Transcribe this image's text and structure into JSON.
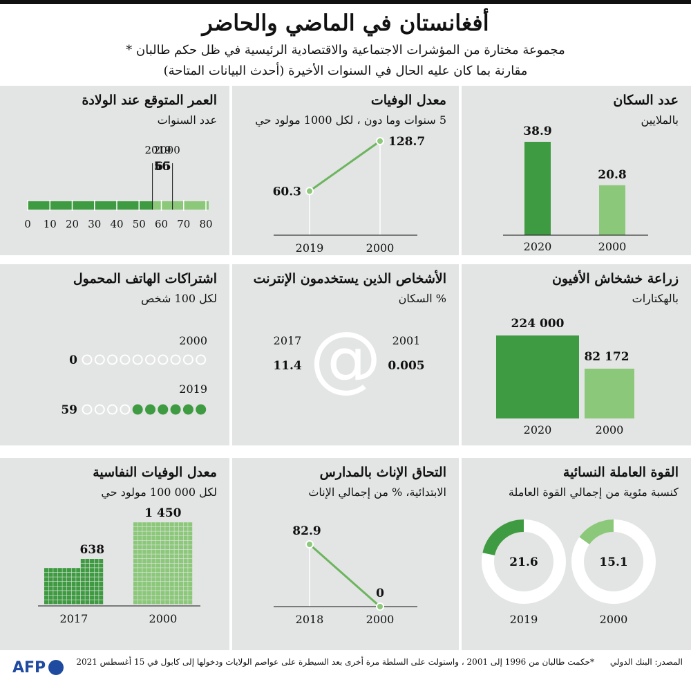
{
  "header": {
    "title": "أفغانستان في الماضي والحاضر",
    "subtitle1": "مجموعة مختارة من المؤشرات الاجتماعية والاقتصادية الرئيسية في ظل حكم طالبان *",
    "subtitle2": "مقارنة بما كان عليه الحال في السنوات الأخيرة (أحدث البيانات المتاحة)"
  },
  "colors": {
    "dark": "#3f9b41",
    "light": "#8cc87a",
    "panel": "#e3e4e4",
    "line": "#6cb55e"
  },
  "chart_data": [
    {
      "id": "population",
      "type": "bar",
      "title": "عدد السكان",
      "subtitle": "بالملايين",
      "categories": [
        "2020",
        "2000"
      ],
      "values": [
        38.9,
        20.8
      ],
      "value_labels": [
        "38.9",
        "20.8"
      ]
    },
    {
      "id": "mortality",
      "type": "line",
      "title": "معدل الوفيات",
      "subtitle": "5 سنوات وما دون ، لكل 1000 مولود حي",
      "categories": [
        "2019",
        "2000"
      ],
      "values": [
        60.3,
        128.7
      ],
      "value_labels": [
        "60.3",
        "128.7"
      ]
    },
    {
      "id": "life_expectancy",
      "type": "bar",
      "title": "العمر المتوقع عند الولادة",
      "subtitle": "عدد السنوات",
      "years": [
        "2019",
        "2000"
      ],
      "values": [
        65,
        56
      ],
      "value_labels": [
        "65",
        "56"
      ],
      "ticks": [
        "0",
        "10",
        "20",
        "30",
        "40",
        "50",
        "60",
        "70",
        "80"
      ],
      "xlim": [
        0,
        80
      ]
    },
    {
      "id": "opium",
      "type": "bar",
      "title": "زراعة خشخاش الأفيون",
      "subtitle": "بالهكتارات",
      "categories": [
        "2020",
        "2000"
      ],
      "values": [
        224000,
        82172
      ],
      "value_labels": [
        "224 000",
        "82 172"
      ]
    },
    {
      "id": "internet",
      "type": "table",
      "title": "الأشخاص الذين يستخدمون الإنترنت",
      "subtitle": "% السكان",
      "years": [
        "2017",
        "2001"
      ],
      "values": [
        11.4,
        0.005
      ],
      "value_labels": [
        "11.4",
        "0.005"
      ],
      "symbol": "@"
    },
    {
      "id": "mobile",
      "type": "table",
      "title": "اشتراكات الهاتف المحمول",
      "subtitle": "لكل 100 شخص",
      "years": [
        "2000",
        "2019"
      ],
      "values": [
        0,
        59
      ],
      "value_labels": [
        "0",
        "59"
      ],
      "dots_total": 10,
      "dots_filled": [
        0,
        6
      ]
    },
    {
      "id": "labor",
      "type": "pie",
      "title": "القوة العاملة النسائية",
      "subtitle": "كنسبة مئوية من إجمالي القوة العاملة",
      "categories": [
        "2019",
        "2000"
      ],
      "values": [
        21.6,
        15.1
      ],
      "value_labels": [
        "21.6",
        "15.1"
      ]
    },
    {
      "id": "enrollment",
      "type": "line",
      "title": "التحاق الإناث بالمدارس",
      "subtitle": "الابتدائية، % من إجمالي الإناث",
      "categories": [
        "2018",
        "2000"
      ],
      "values": [
        82.9,
        0
      ],
      "value_labels": [
        "82.9",
        "0"
      ]
    },
    {
      "id": "maternal",
      "type": "bar",
      "title": "معدل الوفيات النفاسية",
      "subtitle": "لكل 000 100 مولود حي",
      "categories": [
        "2017",
        "2000"
      ],
      "values": [
        638,
        1450
      ],
      "value_labels": [
        "638",
        "1 450"
      ]
    }
  ],
  "footer": {
    "source": "المصدر: البنك الدولي",
    "note": "*حكمت طالبان من 1996 إلى 2001 ، واستولت على السلطة مرة أخرى بعد السيطرة على عواصم الولايات ودخولها إلى كابول في 15 أغسطس 2021",
    "brand": "AFP"
  }
}
